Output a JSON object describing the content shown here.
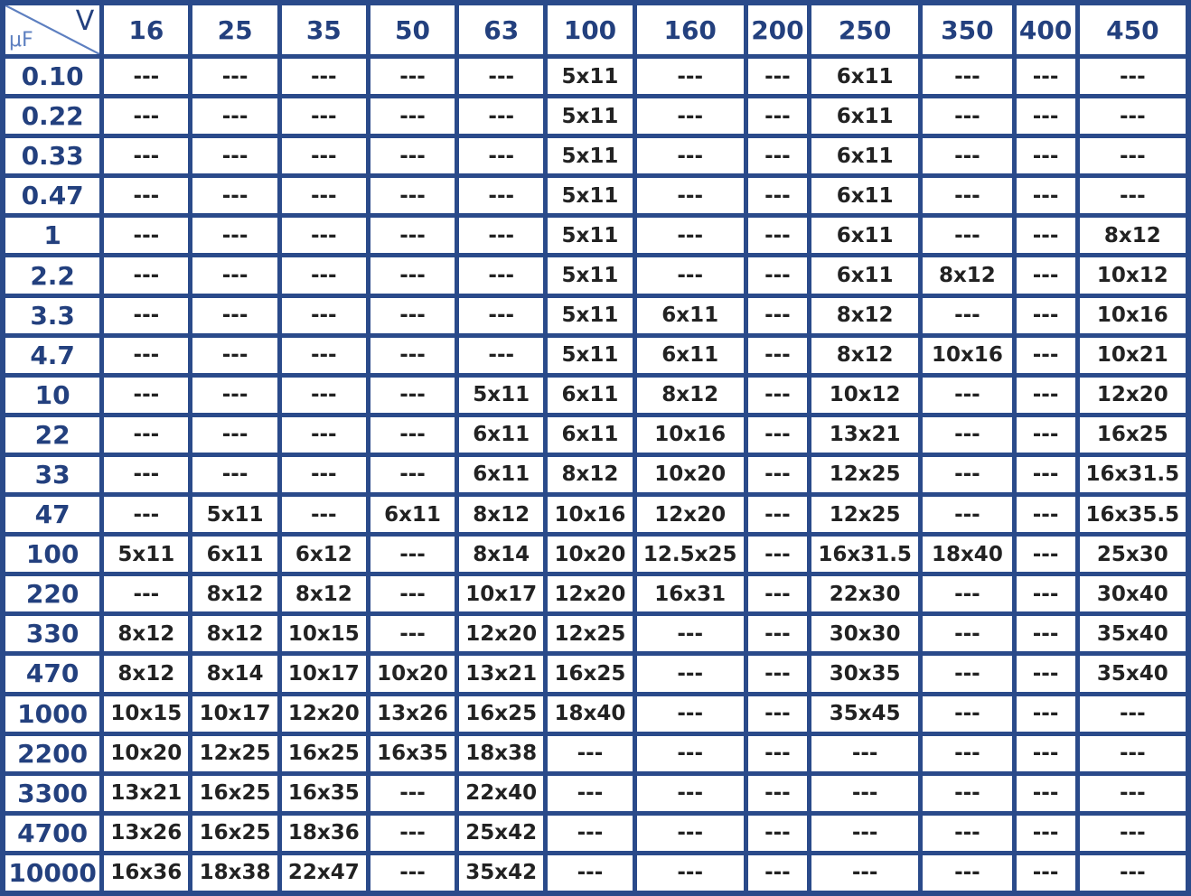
{
  "table": {
    "corner": {
      "capacitance_unit": "μF",
      "voltage_unit": "V",
      "diagonal_color": "#5d7fc0"
    },
    "voltages": [
      "16",
      "25",
      "35",
      "50",
      "63",
      "100",
      "160",
      "200",
      "250",
      "350",
      "400",
      "450"
    ],
    "rows": [
      {
        "cap": "0.10",
        "cells": [
          "---",
          "---",
          "---",
          "---",
          "---",
          "5x11",
          "---",
          "---",
          "6x11",
          "---",
          "---",
          "---"
        ]
      },
      {
        "cap": "0.22",
        "cells": [
          "---",
          "---",
          "---",
          "---",
          "---",
          "5x11",
          "---",
          "---",
          "6x11",
          "---",
          "---",
          "---"
        ]
      },
      {
        "cap": "0.33",
        "cells": [
          "---",
          "---",
          "---",
          "---",
          "---",
          "5x11",
          "---",
          "---",
          "6x11",
          "---",
          "---",
          "---"
        ]
      },
      {
        "cap": "0.47",
        "cells": [
          "---",
          "---",
          "---",
          "---",
          "---",
          "5x11",
          "---",
          "---",
          "6x11",
          "---",
          "---",
          "---"
        ]
      },
      {
        "cap": "1",
        "cells": [
          "---",
          "---",
          "---",
          "---",
          "---",
          "5x11",
          "---",
          "---",
          "6x11",
          "---",
          "---",
          "8x12"
        ]
      },
      {
        "cap": "2.2",
        "cells": [
          "---",
          "---",
          "---",
          "---",
          "---",
          "5x11",
          "---",
          "---",
          "6x11",
          "8x12",
          "---",
          "10x12"
        ]
      },
      {
        "cap": "3.3",
        "cells": [
          "---",
          "---",
          "---",
          "---",
          "---",
          "5x11",
          "6x11",
          "---",
          "8x12",
          "---",
          "---",
          "10x16"
        ]
      },
      {
        "cap": "4.7",
        "cells": [
          "---",
          "---",
          "---",
          "---",
          "---",
          "5x11",
          "6x11",
          "---",
          "8x12",
          "10x16",
          "---",
          "10x21"
        ]
      },
      {
        "cap": "10",
        "cells": [
          "---",
          "---",
          "---",
          "---",
          "5x11",
          "6x11",
          "8x12",
          "---",
          "10x12",
          "---",
          "---",
          "12x20"
        ]
      },
      {
        "cap": "22",
        "cells": [
          "---",
          "---",
          "---",
          "---",
          "6x11",
          "6x11",
          "10x16",
          "---",
          "13x21",
          "---",
          "---",
          "16x25"
        ]
      },
      {
        "cap": "33",
        "cells": [
          "---",
          "---",
          "---",
          "---",
          "6x11",
          "8x12",
          "10x20",
          "---",
          "12x25",
          "---",
          "---",
          "16x31.5"
        ]
      },
      {
        "cap": "47",
        "cells": [
          "---",
          "5x11",
          "---",
          "6x11",
          "8x12",
          "10x16",
          "12x20",
          "---",
          "12x25",
          "---",
          "---",
          "16x35.5"
        ]
      },
      {
        "cap": "100",
        "cells": [
          "5x11",
          "6x11",
          "6x12",
          "---",
          "8x14",
          "10x20",
          "12.5x25",
          "---",
          "16x31.5",
          "18x40",
          "---",
          "25x30"
        ]
      },
      {
        "cap": "220",
        "cells": [
          "---",
          "8x12",
          "8x12",
          "---",
          "10x17",
          "12x20",
          "16x31",
          "---",
          "22x30",
          "---",
          "---",
          "30x40"
        ]
      },
      {
        "cap": "330",
        "cells": [
          "8x12",
          "8x12",
          "10x15",
          "---",
          "12x20",
          "12x25",
          "---",
          "---",
          "30x30",
          "---",
          "---",
          "35x40"
        ]
      },
      {
        "cap": "470",
        "cells": [
          "8x12",
          "8x14",
          "10x17",
          "10x20",
          "13x21",
          "16x25",
          "---",
          "---",
          "30x35",
          "---",
          "---",
          "35x40"
        ]
      },
      {
        "cap": "1000",
        "cells": [
          "10x15",
          "10x17",
          "12x20",
          "13x26",
          "16x25",
          "18x40",
          "---",
          "---",
          "35x45",
          "---",
          "---",
          "---"
        ]
      },
      {
        "cap": "2200",
        "cells": [
          "10x20",
          "12x25",
          "16x25",
          "16x35",
          "18x38",
          "---",
          "---",
          "---",
          "---",
          "---",
          "---",
          "---"
        ]
      },
      {
        "cap": "3300",
        "cells": [
          "13x21",
          "16x25",
          "16x35",
          "---",
          "22x40",
          "---",
          "---",
          "---",
          "---",
          "---",
          "---",
          "---"
        ]
      },
      {
        "cap": "4700",
        "cells": [
          "13x26",
          "16x25",
          "18x36",
          "---",
          "25x42",
          "---",
          "---",
          "---",
          "---",
          "---",
          "---",
          "---"
        ]
      },
      {
        "cap": "10000",
        "cells": [
          "16x36",
          "18x38",
          "22x47",
          "---",
          "35x42",
          "---",
          "---",
          "---",
          "---",
          "---",
          "---",
          "---"
        ]
      }
    ]
  },
  "colors": {
    "border": "#2a4a8a",
    "header_text": "#23407e",
    "cell_text": "#222222",
    "cell_background": "#ffffff"
  }
}
